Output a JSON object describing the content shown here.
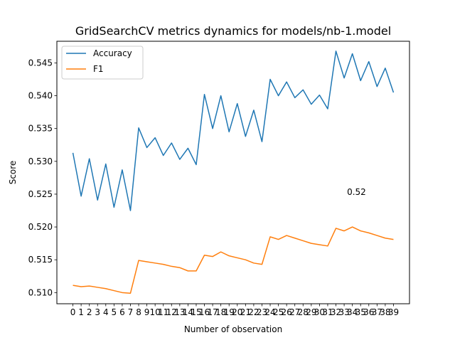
{
  "chart_data": {
    "type": "line",
    "title": "GridSearchCV metrics dynamics for models/nb-1.model",
    "xlabel": "Number of observation",
    "ylabel": "Score",
    "x": [
      0,
      1,
      2,
      3,
      4,
      5,
      6,
      7,
      8,
      9,
      10,
      11,
      12,
      13,
      14,
      15,
      16,
      17,
      18,
      19,
      20,
      21,
      22,
      23,
      24,
      25,
      26,
      27,
      28,
      29,
      30,
      31,
      32,
      33,
      34,
      35,
      36,
      37,
      38,
      39
    ],
    "xticks": [
      "0",
      "1",
      "2",
      "3",
      "4",
      "5",
      "6",
      "7",
      "8",
      "9",
      "10",
      "11",
      "12",
      "13",
      "14",
      "15",
      "16",
      "17",
      "18",
      "19",
      "20",
      "21",
      "22",
      "23",
      "24",
      "25",
      "26",
      "27",
      "28",
      "29",
      "30",
      "31",
      "32",
      "33",
      "34",
      "35",
      "36",
      "37",
      "38",
      "39"
    ],
    "ylim": [
      0.5083,
      0.5483
    ],
    "yticks": [
      0.51,
      0.515,
      0.52,
      0.525,
      0.53,
      0.535,
      0.54,
      0.545
    ],
    "ytick_labels": [
      "0.510",
      "0.515",
      "0.520",
      "0.525",
      "0.530",
      "0.535",
      "0.540",
      "0.545"
    ],
    "grid": false,
    "legend": "top-left",
    "series": [
      {
        "name": "Accuracy",
        "color": "#1f77b4",
        "values": [
          0.5313,
          0.5247,
          0.5304,
          0.5241,
          0.5296,
          0.523,
          0.5287,
          0.5225,
          0.5351,
          0.5321,
          0.5336,
          0.5309,
          0.5328,
          0.5303,
          0.532,
          0.5295,
          0.5402,
          0.535,
          0.54,
          0.5345,
          0.5388,
          0.5338,
          0.5378,
          0.533,
          0.5425,
          0.54,
          0.5421,
          0.5397,
          0.5409,
          0.5387,
          0.5401,
          0.538,
          0.5468,
          0.5427,
          0.5464,
          0.5423,
          0.5452,
          0.5414,
          0.5442,
          0.5405
        ]
      },
      {
        "name": "F1",
        "color": "#ff7f0e",
        "values": [
          0.5111,
          0.5109,
          0.511,
          0.5108,
          0.5106,
          0.5103,
          0.51,
          0.5099,
          0.5149,
          0.5147,
          0.5145,
          0.5143,
          0.514,
          0.5138,
          0.5133,
          0.5133,
          0.5157,
          0.5155,
          0.5162,
          0.5156,
          0.5153,
          0.515,
          0.5145,
          0.5143,
          0.5185,
          0.5181,
          0.5187,
          0.5183,
          0.5179,
          0.5175,
          0.5173,
          0.5171,
          0.5198,
          0.5194,
          0.52,
          0.5194,
          0.5191,
          0.5187,
          0.5183,
          0.5181
        ]
      }
    ],
    "annotations": [
      {
        "text": "0.52",
        "x": 34.5,
        "y": 0.5253
      }
    ]
  }
}
